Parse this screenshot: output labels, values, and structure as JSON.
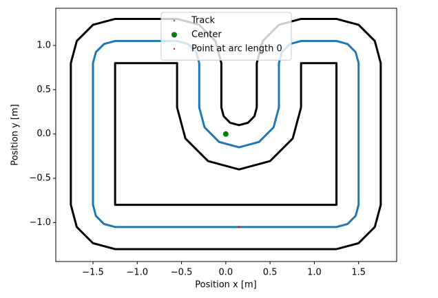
{
  "chart_data": {
    "type": "line",
    "xlabel": "Position x [m]",
    "ylabel": "Position y [m]",
    "xlim": [
      -1.92,
      1.93
    ],
    "ylim": [
      -1.44,
      1.42
    ],
    "xticks": [
      {
        "value": -1.5,
        "label": "−1.5"
      },
      {
        "value": -1.0,
        "label": "−1.0"
      },
      {
        "value": -0.5,
        "label": "−0.5"
      },
      {
        "value": 0,
        "label": "0.0"
      },
      0.5,
      {
        "value": 1.0,
        "label": "1.0"
      },
      1.5
    ],
    "yticks": [
      {
        "value": -1.0,
        "label": "−1.0"
      },
      {
        "value": -0.5,
        "label": "−0.5"
      },
      {
        "value": 0,
        "label": "0.0"
      },
      0.5,
      {
        "value": 1.0,
        "label": "1.0"
      }
    ],
    "legend": "upper center",
    "series": [
      {
        "color": "#000000",
        "marker": "line",
        "x": [
          0.15,
          -1.25,
          -1.5,
          -1.683,
          -1.75,
          -1.75,
          -1.683,
          -1.5,
          -1.25,
          -0.55,
          -0.3,
          -0.117,
          -0.05,
          -0.05,
          -0.0232,
          0.05,
          0.15,
          0.25,
          0.3232,
          0.35,
          0.35,
          0.417,
          0.6,
          0.85,
          1.25,
          1.5,
          1.683,
          1.75,
          1.75,
          1.683,
          1.5,
          1.25,
          0.15
        ],
        "y": [
          -1.3,
          -1.3,
          -1.233,
          -1.05,
          -0.8,
          0.8,
          1.05,
          1.233,
          1.3,
          1.3,
          1.233,
          1.05,
          0.8,
          0.3,
          0.2,
          0.1268,
          0.1,
          0.1268,
          0.2,
          0.3,
          0.8,
          1.05,
          1.233,
          1.3,
          1.3,
          1.233,
          1.05,
          0.8,
          -0.8,
          -1.05,
          -1.233,
          -1.3,
          -1.3
        ]
      },
      {
        "color": "#000000",
        "marker": "line",
        "x": [
          0.15,
          -1.25,
          -1.25,
          -0.55,
          -0.55,
          -0.4562,
          -0.2,
          0.15,
          0.5,
          0.7562,
          0.85,
          0.85,
          1.25,
          1.25,
          0.15
        ],
        "y": [
          -0.8,
          -0.8,
          0.8,
          0.8,
          0.3,
          -0.05,
          -0.3062,
          -0.4,
          -0.3062,
          -0.05,
          0.3,
          0.8,
          0.8,
          -0.8,
          -0.8
        ]
      },
      {
        "name": "Track",
        "color": "#1f77b4",
        "marker": "line",
        "x": [
          0.15,
          -1.25,
          -1.375,
          -1.4665,
          -1.5,
          -1.5,
          -1.4665,
          -1.375,
          -1.25,
          -0.55,
          -0.425,
          -0.3335,
          -0.3,
          -0.3,
          -0.2397,
          -0.075,
          0.15,
          0.375,
          0.5397,
          0.6,
          0.6,
          0.6335,
          0.725,
          0.85,
          1.25,
          1.375,
          1.4665,
          1.5,
          1.5,
          1.4665,
          1.375,
          1.25,
          0.15
        ],
        "y": [
          -1.05,
          -1.05,
          -1.0165,
          -0.925,
          -0.8,
          0.8,
          0.925,
          1.0165,
          1.05,
          1.05,
          1.0165,
          0.925,
          0.8,
          0.3,
          0.075,
          -0.0897,
          -0.15,
          -0.0897,
          0.075,
          0.3,
          0.8,
          0.925,
          1.0165,
          1.05,
          1.05,
          1.0165,
          0.925,
          0.8,
          -0.8,
          -0.925,
          -1.0165,
          -1.05,
          -1.05
        ]
      },
      {
        "name": "Center",
        "color": "#008000",
        "marker": "o",
        "x": [
          0
        ],
        "y": [
          0
        ]
      },
      {
        "name": "Point at arc length 0",
        "color": "#ff0000",
        "marker": ".",
        "x": [
          0.15
        ],
        "y": [
          -1.05
        ]
      }
    ]
  }
}
